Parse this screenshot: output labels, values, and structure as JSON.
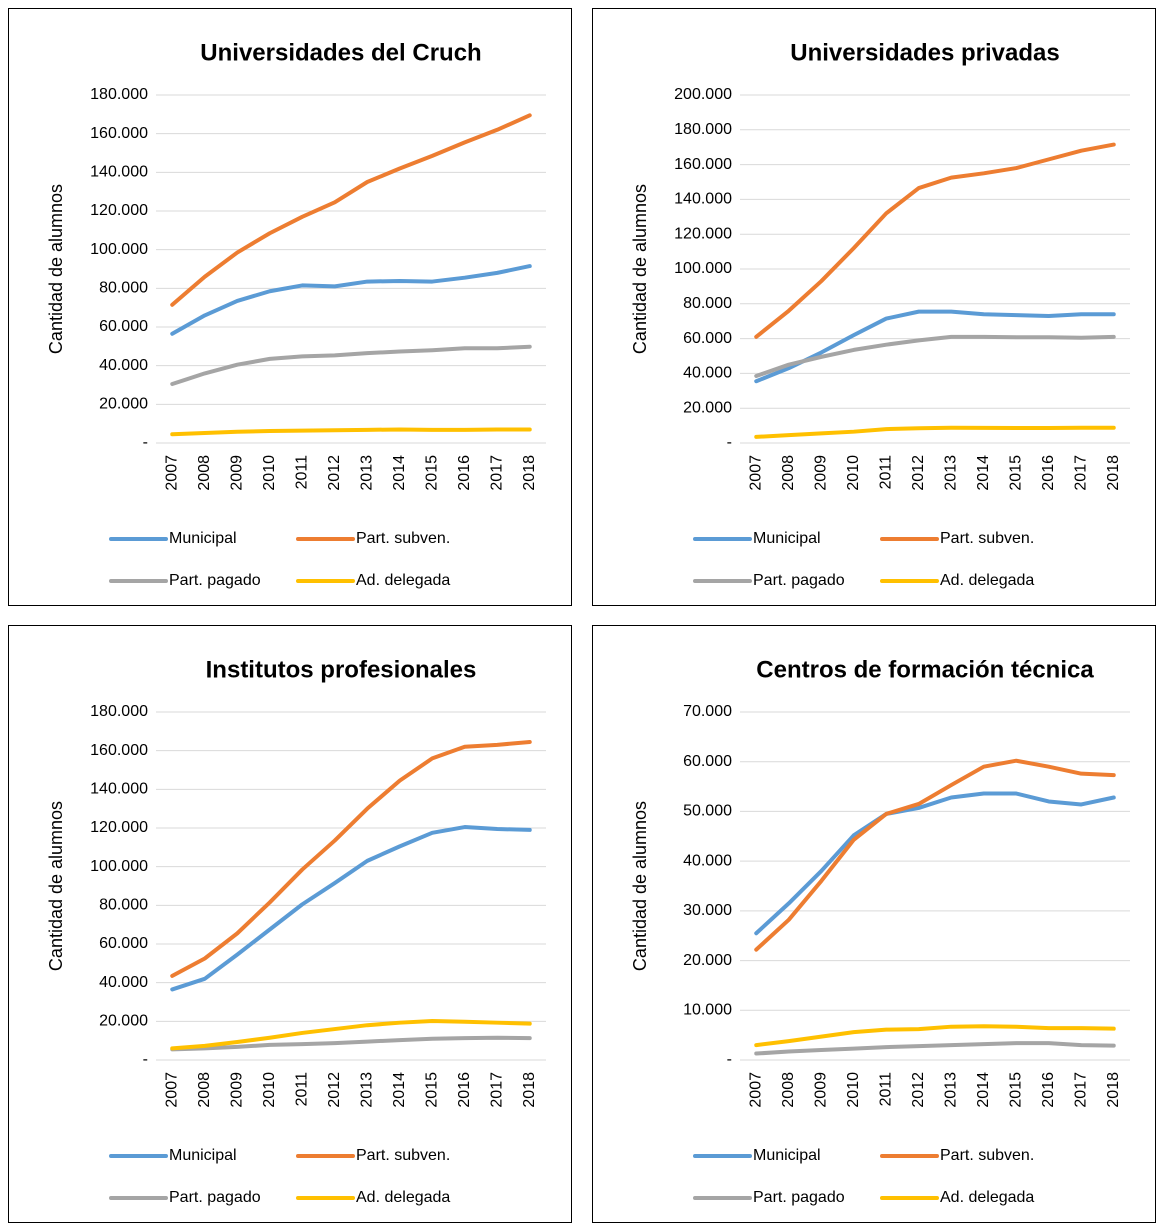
{
  "chart_data": [
    {
      "type": "line",
      "title": "Universidades del Cruch",
      "y_label": "Cantidad de alumnos",
      "categories": [
        "2007",
        "2008",
        "2009",
        "2010",
        "2011",
        "2012",
        "2013",
        "2014",
        "2015",
        "2016",
        "2017",
        "2018"
      ],
      "ylim": [
        0,
        180000
      ],
      "yticks": [
        {
          "value": 0,
          "label": "-"
        },
        {
          "value": 20000,
          "label": "20.000"
        },
        {
          "value": 40000,
          "label": "40.000"
        },
        {
          "value": 60000,
          "label": "60.000"
        },
        {
          "value": 80000,
          "label": "80.000"
        },
        {
          "value": 100000,
          "label": "100.000"
        },
        {
          "value": 120000,
          "label": "120.000"
        },
        {
          "value": 140000,
          "label": "140.000"
        },
        {
          "value": 160000,
          "label": "160.000"
        },
        {
          "value": 180000,
          "label": "180.000"
        }
      ],
      "grid": true,
      "series": [
        {
          "name": "Municipal",
          "color": "#5b9bd5",
          "values": [
            56500,
            66000,
            73500,
            78500,
            81500,
            81000,
            83500,
            83800,
            83500,
            85500,
            88000,
            91500
          ]
        },
        {
          "name": "Part. subven.",
          "color": "#ed7d31",
          "values": [
            71500,
            86000,
            98500,
            108500,
            117000,
            124500,
            135000,
            142000,
            148500,
            155500,
            162000,
            169500
          ]
        },
        {
          "name": "Part. pagado",
          "color": "#a5a5a5",
          "values": [
            30500,
            36000,
            40500,
            43500,
            44800,
            45300,
            46500,
            47300,
            48000,
            49000,
            49000,
            49800
          ]
        },
        {
          "name": "Ad. delegada",
          "color": "#ffc000",
          "values": [
            4500,
            5200,
            5800,
            6200,
            6400,
            6600,
            6800,
            7000,
            6800,
            6800,
            7000,
            7000
          ]
        }
      ]
    },
    {
      "type": "line",
      "title": "Universidades privadas",
      "y_label": "Cantidad de alumnos",
      "categories": [
        "2007",
        "2008",
        "2009",
        "2010",
        "2011",
        "2012",
        "2013",
        "2014",
        "2015",
        "2016",
        "2017",
        "2018"
      ],
      "ylim": [
        0,
        200000
      ],
      "yticks": [
        {
          "value": 0,
          "label": "-"
        },
        {
          "value": 20000,
          "label": "20.000"
        },
        {
          "value": 40000,
          "label": "40.000"
        },
        {
          "value": 60000,
          "label": "60.000"
        },
        {
          "value": 80000,
          "label": "80.000"
        },
        {
          "value": 100000,
          "label": "100.000"
        },
        {
          "value": 120000,
          "label": "120.000"
        },
        {
          "value": 140000,
          "label": "140.000"
        },
        {
          "value": 160000,
          "label": "160.000"
        },
        {
          "value": 180000,
          "label": "180.000"
        },
        {
          "value": 200000,
          "label": "200.000"
        }
      ],
      "grid": true,
      "series": [
        {
          "name": "Municipal",
          "color": "#5b9bd5",
          "values": [
            35500,
            43000,
            52000,
            62000,
            71500,
            75500,
            75500,
            74000,
            73500,
            73000,
            74000,
            74000
          ]
        },
        {
          "name": "Part. subven.",
          "color": "#ed7d31",
          "values": [
            61000,
            76000,
            93000,
            112000,
            132000,
            146500,
            152500,
            155000,
            158000,
            163000,
            168000,
            171500
          ]
        },
        {
          "name": "Part. pagado",
          "color": "#a5a5a5",
          "values": [
            38500,
            45000,
            49500,
            53500,
            56500,
            59000,
            61000,
            61000,
            60800,
            60800,
            60500,
            61000
          ]
        },
        {
          "name": "Ad. delegada",
          "color": "#ffc000",
          "values": [
            3500,
            4500,
            5500,
            6500,
            8000,
            8500,
            8800,
            8700,
            8600,
            8600,
            8800,
            8800
          ]
        }
      ]
    },
    {
      "type": "line",
      "title": "Institutos profesionales",
      "y_label": "Cantidad de alumnos",
      "categories": [
        "2007",
        "2008",
        "2009",
        "2010",
        "2011",
        "2012",
        "2013",
        "2014",
        "2015",
        "2016",
        "2017",
        "2018"
      ],
      "ylim": [
        0,
        180000
      ],
      "yticks": [
        {
          "value": 0,
          "label": "-"
        },
        {
          "value": 20000,
          "label": "20.000"
        },
        {
          "value": 40000,
          "label": "40.000"
        },
        {
          "value": 60000,
          "label": "60.000"
        },
        {
          "value": 80000,
          "label": "80.000"
        },
        {
          "value": 100000,
          "label": "100.000"
        },
        {
          "value": 120000,
          "label": "120.000"
        },
        {
          "value": 140000,
          "label": "140.000"
        },
        {
          "value": 160000,
          "label": "160.000"
        },
        {
          "value": 180000,
          "label": "180.000"
        }
      ],
      "grid": true,
      "series": [
        {
          "name": "Municipal",
          "color": "#5b9bd5",
          "values": [
            36500,
            42000,
            54500,
            67500,
            80500,
            91500,
            103000,
            110500,
            117500,
            120500,
            119500,
            119000
          ]
        },
        {
          "name": "Part. subven.",
          "color": "#ed7d31",
          "values": [
            43500,
            52500,
            65500,
            81500,
            98500,
            113500,
            130000,
            144500,
            156000,
            162000,
            163000,
            164500
          ]
        },
        {
          "name": "Part. pagado",
          "color": "#a5a5a5",
          "values": [
            5500,
            6000,
            6800,
            7800,
            8200,
            8700,
            9500,
            10300,
            11000,
            11300,
            11500,
            11300
          ]
        },
        {
          "name": "Ad. delegada",
          "color": "#ffc000",
          "values": [
            6000,
            7300,
            9300,
            11500,
            14000,
            16000,
            18000,
            19300,
            20200,
            19800,
            19300,
            18800
          ]
        }
      ]
    },
    {
      "type": "line",
      "title": "Centros de formación técnica",
      "y_label": "Cantidad de alumnos",
      "categories": [
        "2007",
        "2008",
        "2009",
        "2010",
        "2011",
        "2012",
        "2013",
        "2014",
        "2015",
        "2016",
        "2017",
        "2018"
      ],
      "ylim": [
        0,
        70000
      ],
      "yticks": [
        {
          "value": 0,
          "label": "-"
        },
        {
          "value": 10000,
          "label": "10.000"
        },
        {
          "value": 20000,
          "label": "20.000"
        },
        {
          "value": 30000,
          "label": "30.000"
        },
        {
          "value": 40000,
          "label": "40.000"
        },
        {
          "value": 50000,
          "label": "50.000"
        },
        {
          "value": 60000,
          "label": "60.000"
        },
        {
          "value": 70000,
          "label": "70.000"
        }
      ],
      "grid": true,
      "series": [
        {
          "name": "Municipal",
          "color": "#5b9bd5",
          "values": [
            25500,
            31500,
            38000,
            45200,
            49500,
            50700,
            52800,
            53600,
            53600,
            52000,
            51400,
            52800
          ]
        },
        {
          "name": "Part. subven.",
          "color": "#ed7d31",
          "values": [
            22200,
            28200,
            36000,
            44300,
            49500,
            51500,
            55300,
            59000,
            60200,
            59000,
            57600,
            57300
          ]
        },
        {
          "name": "Part. pagado",
          "color": "#a5a5a5",
          "values": [
            1300,
            1700,
            2000,
            2300,
            2600,
            2800,
            3000,
            3200,
            3400,
            3400,
            3000,
            2900
          ]
        },
        {
          "name": "Ad. delegada",
          "color": "#ffc000",
          "values": [
            3000,
            3800,
            4700,
            5600,
            6100,
            6200,
            6700,
            6800,
            6700,
            6400,
            6400,
            6300
          ]
        }
      ]
    }
  ]
}
